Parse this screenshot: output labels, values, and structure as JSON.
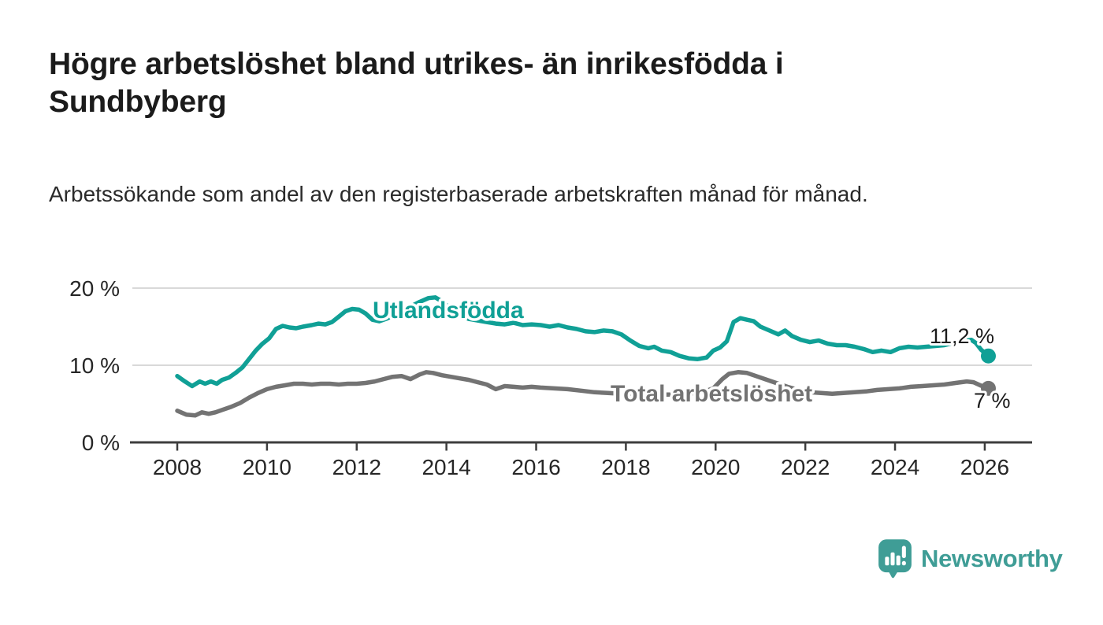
{
  "page": {
    "background": "#ffffff"
  },
  "header": {
    "title": "Högre arbetslöshet bland utrikes- än inrikesfödda i Sundbyberg",
    "subtitle": "Arbetssökande som andel av den registerbaserade arbetskraften månad för månad."
  },
  "branding": {
    "logo_text": "Newsworthy",
    "color": "#3f9d96",
    "icon": "speech-bubble-bar-chart-icon"
  },
  "chart_data": {
    "type": "line",
    "title": "",
    "xlabel": "",
    "ylabel": "",
    "grid": "horizontal",
    "grid_color": "#d9d9d9",
    "axis_color": "#3d3d3d",
    "axis_text_color": "#262626",
    "value_label_color": "#1a1a1a",
    "x_axis": {
      "ticks": [
        2008,
        2010,
        2012,
        2014,
        2016,
        2018,
        2020,
        2022,
        2024,
        2026
      ],
      "min": 2007,
      "max": 2027
    },
    "y_axis": {
      "ticks": [
        {
          "v": 0,
          "label": "0 %"
        },
        {
          "v": 10,
          "label": "10 %"
        },
        {
          "v": 20,
          "label": "20 %"
        }
      ],
      "min": 0,
      "max": 21.5
    },
    "series": [
      {
        "name": "Utlandsfödda",
        "color": "#10a096",
        "end_label": "11,2 %",
        "end_value": 11.2,
        "points": [
          [
            2008.0,
            8.6
          ],
          [
            2008.17,
            7.9
          ],
          [
            2008.33,
            7.3
          ],
          [
            2008.5,
            7.9
          ],
          [
            2008.62,
            7.6
          ],
          [
            2008.75,
            7.9
          ],
          [
            2008.88,
            7.6
          ],
          [
            2009.0,
            8.1
          ],
          [
            2009.15,
            8.4
          ],
          [
            2009.3,
            9.0
          ],
          [
            2009.45,
            9.7
          ],
          [
            2009.6,
            10.8
          ],
          [
            2009.75,
            11.9
          ],
          [
            2009.9,
            12.8
          ],
          [
            2010.05,
            13.5
          ],
          [
            2010.2,
            14.7
          ],
          [
            2010.35,
            15.1
          ],
          [
            2010.5,
            14.9
          ],
          [
            2010.65,
            14.8
          ],
          [
            2010.8,
            15.0
          ],
          [
            2011.0,
            15.2
          ],
          [
            2011.15,
            15.4
          ],
          [
            2011.3,
            15.3
          ],
          [
            2011.45,
            15.6
          ],
          [
            2011.6,
            16.3
          ],
          [
            2011.75,
            17.0
          ],
          [
            2011.9,
            17.3
          ],
          [
            2012.05,
            17.2
          ],
          [
            2012.2,
            16.7
          ],
          [
            2012.35,
            15.9
          ],
          [
            2012.5,
            15.7
          ],
          [
            2012.65,
            16.0
          ],
          [
            2012.8,
            16.4
          ],
          [
            2013.0,
            17.0
          ],
          [
            2013.2,
            17.6
          ],
          [
            2013.4,
            18.2
          ],
          [
            2013.6,
            18.7
          ],
          [
            2013.75,
            18.8
          ],
          [
            2013.9,
            18.3
          ],
          [
            2014.1,
            17.3
          ],
          [
            2014.3,
            16.5
          ],
          [
            2014.5,
            16.0
          ],
          [
            2014.7,
            15.8
          ],
          [
            2014.9,
            15.6
          ],
          [
            2015.1,
            15.4
          ],
          [
            2015.3,
            15.3
          ],
          [
            2015.5,
            15.5
          ],
          [
            2015.7,
            15.2
          ],
          [
            2015.9,
            15.3
          ],
          [
            2016.1,
            15.2
          ],
          [
            2016.3,
            15.0
          ],
          [
            2016.5,
            15.2
          ],
          [
            2016.7,
            14.9
          ],
          [
            2016.9,
            14.7
          ],
          [
            2017.1,
            14.4
          ],
          [
            2017.3,
            14.3
          ],
          [
            2017.5,
            14.5
          ],
          [
            2017.7,
            14.4
          ],
          [
            2017.9,
            14.0
          ],
          [
            2018.1,
            13.2
          ],
          [
            2018.3,
            12.5
          ],
          [
            2018.5,
            12.2
          ],
          [
            2018.63,
            12.4
          ],
          [
            2018.8,
            11.9
          ],
          [
            2019.0,
            11.7
          ],
          [
            2019.2,
            11.2
          ],
          [
            2019.4,
            10.9
          ],
          [
            2019.6,
            10.8
          ],
          [
            2019.8,
            11.0
          ],
          [
            2019.95,
            11.9
          ],
          [
            2020.1,
            12.3
          ],
          [
            2020.25,
            13.1
          ],
          [
            2020.4,
            15.6
          ],
          [
            2020.55,
            16.1
          ],
          [
            2020.7,
            15.9
          ],
          [
            2020.85,
            15.7
          ],
          [
            2021.0,
            15.0
          ],
          [
            2021.2,
            14.5
          ],
          [
            2021.4,
            14.0
          ],
          [
            2021.55,
            14.5
          ],
          [
            2021.7,
            13.8
          ],
          [
            2021.9,
            13.3
          ],
          [
            2022.1,
            13.0
          ],
          [
            2022.3,
            13.2
          ],
          [
            2022.5,
            12.8
          ],
          [
            2022.7,
            12.6
          ],
          [
            2022.9,
            12.6
          ],
          [
            2023.1,
            12.4
          ],
          [
            2023.3,
            12.1
          ],
          [
            2023.5,
            11.7
          ],
          [
            2023.7,
            11.9
          ],
          [
            2023.9,
            11.7
          ],
          [
            2024.1,
            12.2
          ],
          [
            2024.3,
            12.4
          ],
          [
            2024.5,
            12.3
          ],
          [
            2024.7,
            12.4
          ],
          [
            2024.9,
            12.5
          ],
          [
            2025.1,
            12.6
          ],
          [
            2025.3,
            12.9
          ],
          [
            2025.5,
            13.1
          ],
          [
            2025.7,
            13.3
          ],
          [
            2025.8,
            12.9
          ],
          [
            2025.92,
            12.0
          ],
          [
            2026.08,
            11.2
          ]
        ]
      },
      {
        "name": "Total arbetslöshet",
        "color": "#737373",
        "end_label": "7 %",
        "end_value": 7.0,
        "points": [
          [
            2008.0,
            4.1
          ],
          [
            2008.2,
            3.6
          ],
          [
            2008.4,
            3.5
          ],
          [
            2008.55,
            3.9
          ],
          [
            2008.7,
            3.7
          ],
          [
            2008.85,
            3.9
          ],
          [
            2009.0,
            4.2
          ],
          [
            2009.2,
            4.6
          ],
          [
            2009.4,
            5.1
          ],
          [
            2009.6,
            5.8
          ],
          [
            2009.8,
            6.4
          ],
          [
            2010.0,
            6.9
          ],
          [
            2010.2,
            7.2
          ],
          [
            2010.4,
            7.4
          ],
          [
            2010.6,
            7.6
          ],
          [
            2010.8,
            7.6
          ],
          [
            2011.0,
            7.5
          ],
          [
            2011.2,
            7.6
          ],
          [
            2011.4,
            7.6
          ],
          [
            2011.6,
            7.5
          ],
          [
            2011.8,
            7.6
          ],
          [
            2012.0,
            7.6
          ],
          [
            2012.2,
            7.7
          ],
          [
            2012.4,
            7.9
          ],
          [
            2012.6,
            8.2
          ],
          [
            2012.8,
            8.5
          ],
          [
            2013.0,
            8.6
          ],
          [
            2013.2,
            8.2
          ],
          [
            2013.4,
            8.8
          ],
          [
            2013.55,
            9.1
          ],
          [
            2013.7,
            9.0
          ],
          [
            2013.9,
            8.7
          ],
          [
            2014.1,
            8.5
          ],
          [
            2014.3,
            8.3
          ],
          [
            2014.5,
            8.1
          ],
          [
            2014.7,
            7.8
          ],
          [
            2014.9,
            7.5
          ],
          [
            2015.1,
            6.9
          ],
          [
            2015.3,
            7.3
          ],
          [
            2015.5,
            7.2
          ],
          [
            2015.7,
            7.1
          ],
          [
            2015.9,
            7.2
          ],
          [
            2016.1,
            7.1
          ],
          [
            2016.4,
            7.0
          ],
          [
            2016.7,
            6.9
          ],
          [
            2017.0,
            6.7
          ],
          [
            2017.3,
            6.5
          ],
          [
            2017.6,
            6.4
          ],
          [
            2017.9,
            6.3
          ],
          [
            2018.2,
            6.3
          ],
          [
            2018.5,
            6.2
          ],
          [
            2018.8,
            6.2
          ],
          [
            2019.1,
            6.2
          ],
          [
            2019.4,
            6.3
          ],
          [
            2019.7,
            6.5
          ],
          [
            2019.95,
            7.0
          ],
          [
            2020.15,
            8.2
          ],
          [
            2020.3,
            8.9
          ],
          [
            2020.5,
            9.1
          ],
          [
            2020.7,
            9.0
          ],
          [
            2020.9,
            8.6
          ],
          [
            2021.1,
            8.2
          ],
          [
            2021.35,
            7.7
          ],
          [
            2021.6,
            7.2
          ],
          [
            2021.85,
            6.8
          ],
          [
            2022.1,
            6.5
          ],
          [
            2022.35,
            6.4
          ],
          [
            2022.6,
            6.3
          ],
          [
            2022.85,
            6.4
          ],
          [
            2023.1,
            6.5
          ],
          [
            2023.35,
            6.6
          ],
          [
            2023.6,
            6.8
          ],
          [
            2023.85,
            6.9
          ],
          [
            2024.1,
            7.0
          ],
          [
            2024.35,
            7.2
          ],
          [
            2024.6,
            7.3
          ],
          [
            2024.85,
            7.4
          ],
          [
            2025.1,
            7.5
          ],
          [
            2025.35,
            7.7
          ],
          [
            2025.6,
            7.9
          ],
          [
            2025.75,
            7.8
          ],
          [
            2025.9,
            7.4
          ],
          [
            2026.08,
            7.0
          ]
        ]
      }
    ]
  }
}
